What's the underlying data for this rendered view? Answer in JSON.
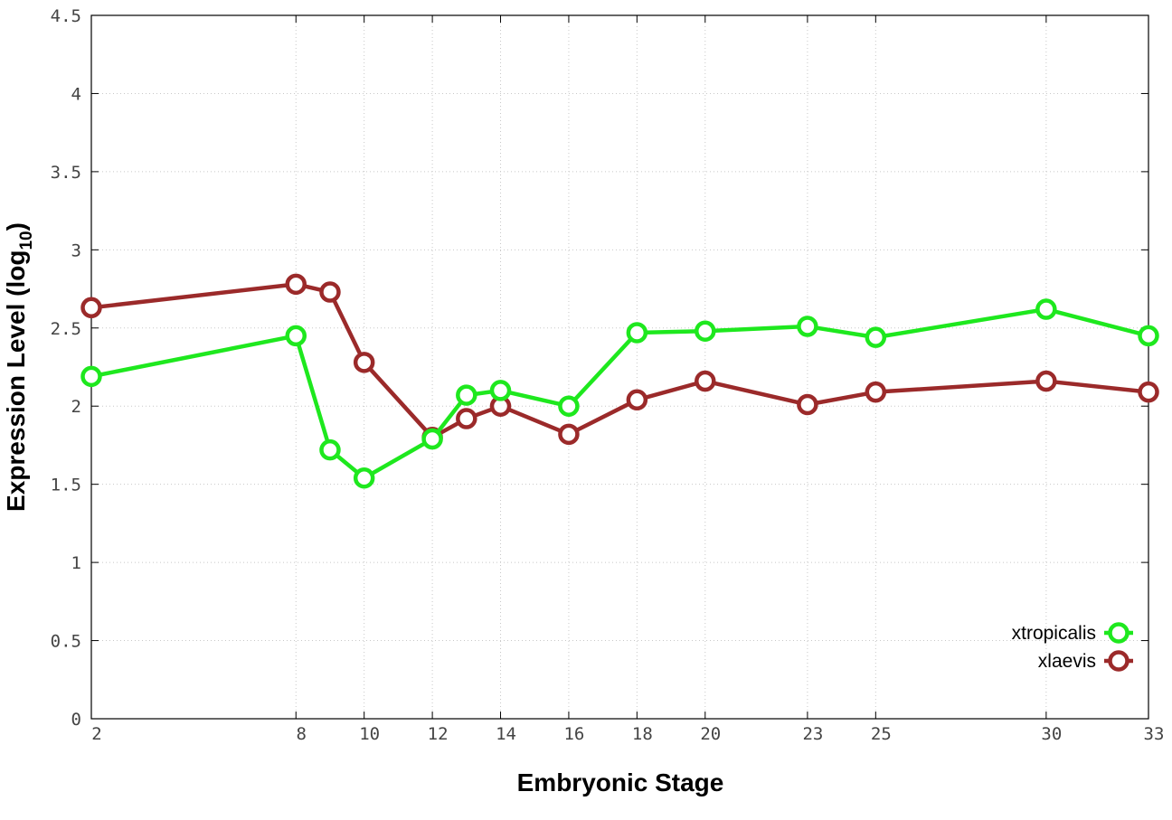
{
  "chart_data": {
    "type": "line",
    "xlabel": "Embryonic Stage",
    "ylabel_main": "Expression Level (log",
    "ylabel_sub": "10",
    "ylabel_close": ")",
    "x": [
      2,
      8,
      9,
      10,
      12,
      13,
      14,
      16,
      18,
      20,
      23,
      25,
      30,
      33
    ],
    "x_ticks": [
      2,
      8,
      10,
      12,
      14,
      16,
      18,
      20,
      23,
      25,
      30,
      33
    ],
    "xlim": [
      2,
      33
    ],
    "ylim": [
      0,
      4.5
    ],
    "y_ticks": [
      "0",
      "0.5",
      "1",
      "1.5",
      "2",
      "2.5",
      "3",
      "3.5",
      "4",
      "4.5"
    ],
    "grid": true,
    "legend_position": "bottom-right",
    "series": [
      {
        "name": "xtropicalis",
        "color": "#1ee81e",
        "values": [
          2.19,
          2.45,
          1.72,
          1.54,
          1.79,
          2.07,
          2.1,
          2.0,
          2.47,
          2.48,
          2.51,
          2.44,
          2.62,
          2.45
        ]
      },
      {
        "name": "xlaevis",
        "color": "#9b2a2a",
        "values": [
          2.63,
          2.78,
          2.73,
          2.28,
          1.8,
          1.92,
          2.0,
          1.82,
          2.04,
          2.16,
          2.01,
          2.09,
          2.16,
          2.09
        ]
      }
    ]
  }
}
